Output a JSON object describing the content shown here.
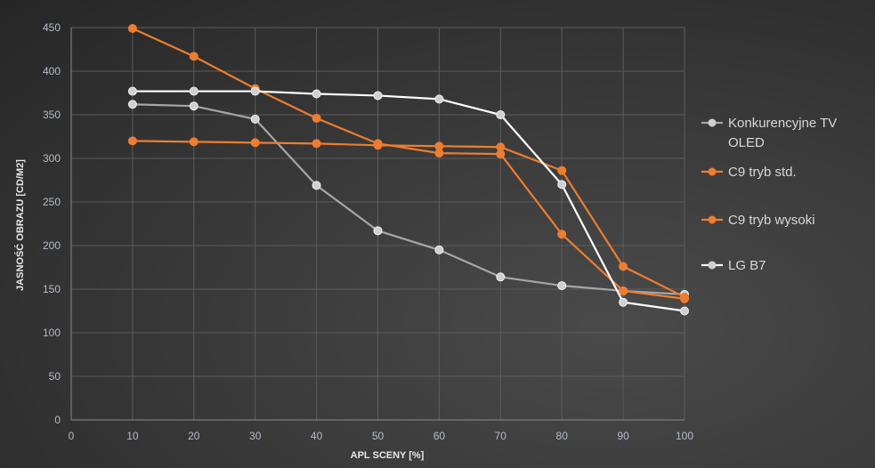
{
  "chart_data": {
    "type": "line",
    "title": "",
    "xlabel": "APL SCENY [%]",
    "ylabel": "JASNOŚĆ OBRAZU [CD/M2]",
    "xlim": [
      0,
      100
    ],
    "ylim": [
      0,
      450
    ],
    "x_ticks": [
      0,
      10,
      20,
      30,
      40,
      50,
      60,
      70,
      80,
      90,
      100
    ],
    "y_ticks": [
      0,
      50,
      100,
      150,
      200,
      250,
      300,
      350,
      400,
      450
    ],
    "grid": true,
    "legend_position": "right",
    "x": [
      10,
      20,
      30,
      40,
      50,
      60,
      70,
      80,
      90,
      100
    ],
    "series": [
      {
        "name": "Konkurencyjne TV OLED",
        "legend_lines": [
          "Konkurencyjne TV",
          "OLED"
        ],
        "color": "#a6a6a6",
        "marker": "#d0d0d0",
        "values": [
          362,
          360,
          345,
          269,
          217,
          195,
          164,
          154,
          148,
          144
        ]
      },
      {
        "name": "C9 tryb std.",
        "legend_lines": [
          "C9 tryb std."
        ],
        "color": "#ed7d31",
        "marker": "#ed7d31",
        "values": [
          320,
          319,
          318,
          317,
          315,
          314,
          313,
          286,
          176,
          141
        ]
      },
      {
        "name": "C9 tryb wysoki",
        "legend_lines": [
          "C9 tryb wysoki"
        ],
        "color": "#ed7d31",
        "marker": "#ed7d31",
        "values": [
          449,
          417,
          380,
          346,
          317,
          306,
          305,
          213,
          148,
          139
        ]
      },
      {
        "name": "LG B7",
        "legend_lines": [
          "LG B7"
        ],
        "color": "#ffffff",
        "marker": "#d0d0d0",
        "values": [
          377,
          377,
          377,
          374,
          372,
          368,
          350,
          270,
          135,
          125
        ]
      }
    ]
  }
}
